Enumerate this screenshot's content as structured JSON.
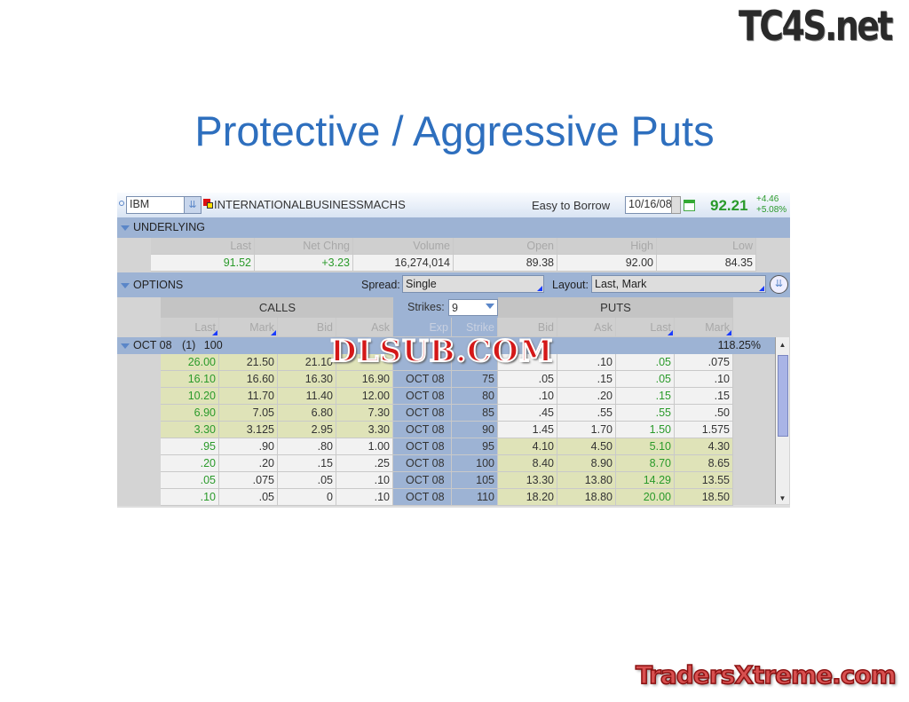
{
  "logos": {
    "top": "TC4S.net",
    "watermark": "DLSUB.COM",
    "bottom": "TradersXtreme.com"
  },
  "slide_title": "Protective / Aggressive Puts",
  "header": {
    "symbol": "IBM",
    "company": "INTERNATIONALBUSINESSMACHS",
    "borrow": "Easy to Borrow",
    "date": "10/16/08",
    "price": "92.21",
    "change": "+4.46",
    "change_pct": "+5.08%"
  },
  "underlying": {
    "label": "UNDERLYING",
    "columns": [
      "Last",
      "Net Chng",
      "Volume",
      "Open",
      "High",
      "Low"
    ],
    "values": [
      "91.52",
      "+3.23",
      "16,274,014",
      "89.38",
      "92.00",
      "84.35"
    ]
  },
  "options": {
    "label": "OPTIONS",
    "spread_label": "Spread:",
    "spread": "Single",
    "layout_label": "Layout:",
    "layout": "Last, Mark",
    "calls": "CALLS",
    "puts": "PUTS",
    "strikes_label": "Strikes:",
    "strikes": "9",
    "columns": [
      "Last",
      "Mark",
      "Bid",
      "Ask",
      "Exp",
      "Strike",
      "Bid",
      "Ask",
      "Last",
      "Mark"
    ],
    "group": {
      "label": "OCT 08",
      "count": "(1)",
      "mult": "100",
      "iv": "118.25%"
    },
    "rows": [
      [
        "26.00",
        "21.50",
        "21.10",
        "",
        "",
        "",
        "",
        ".10",
        ".05",
        ".075"
      ],
      [
        "16.10",
        "16.60",
        "16.30",
        "16.90",
        "OCT 08",
        "75",
        ".05",
        ".15",
        ".05",
        ".10"
      ],
      [
        "10.20",
        "11.70",
        "11.40",
        "12.00",
        "OCT 08",
        "80",
        ".10",
        ".20",
        ".15",
        ".15"
      ],
      [
        "6.90",
        "7.05",
        "6.80",
        "7.30",
        "OCT 08",
        "85",
        ".45",
        ".55",
        ".55",
        ".50"
      ],
      [
        "3.30",
        "3.125",
        "2.95",
        "3.30",
        "OCT 08",
        "90",
        "1.45",
        "1.70",
        "1.50",
        "1.575"
      ],
      [
        ".95",
        ".90",
        ".80",
        "1.00",
        "OCT 08",
        "95",
        "4.10",
        "4.50",
        "5.10",
        "4.30"
      ],
      [
        ".20",
        ".20",
        ".15",
        ".25",
        "OCT 08",
        "100",
        "8.40",
        "8.90",
        "8.70",
        "8.65"
      ],
      [
        ".05",
        ".075",
        ".05",
        ".10",
        "OCT 08",
        "105",
        "13.30",
        "13.80",
        "14.29",
        "13.55"
      ],
      [
        ".10",
        ".05",
        "0",
        ".10",
        "OCT 08",
        "110",
        "18.20",
        "18.80",
        "20.00",
        "18.50"
      ]
    ],
    "itm_rows_calls": 5
  },
  "colors": {
    "title": "#2e6fbe",
    "green": "#2a9a2a",
    "itm": "#dfe3b8",
    "strike_col": "#9db3d4",
    "bar": "#9db3d4"
  }
}
